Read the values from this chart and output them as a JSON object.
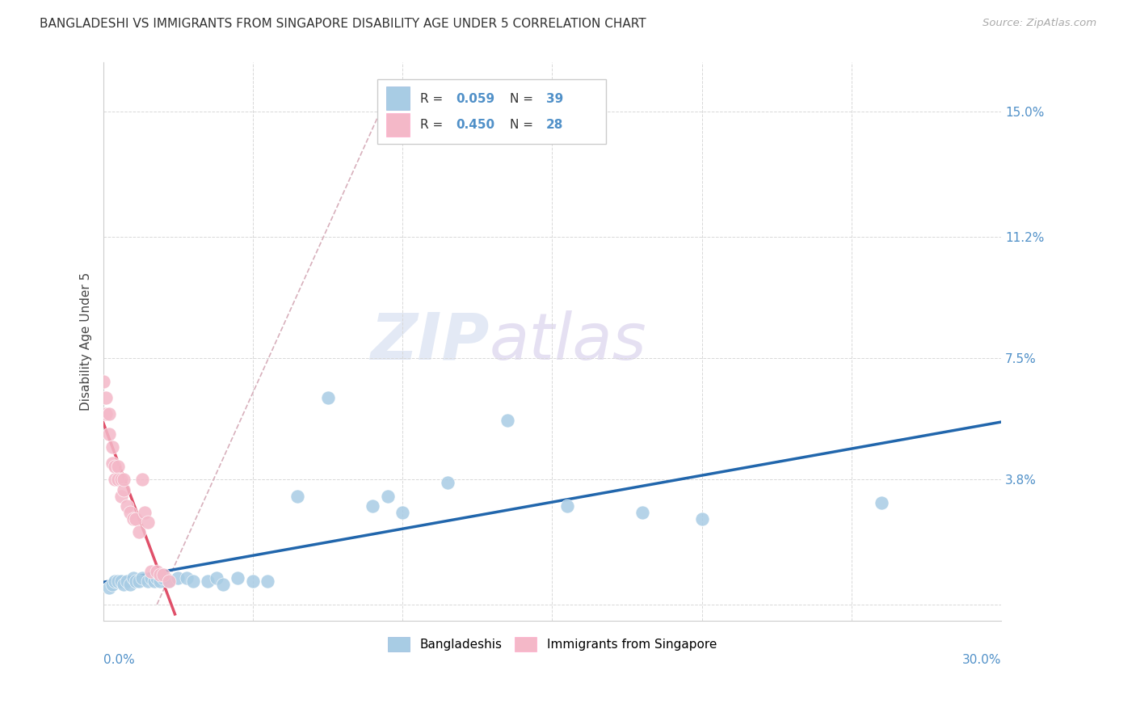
{
  "title": "BANGLADESHI VS IMMIGRANTS FROM SINGAPORE DISABILITY AGE UNDER 5 CORRELATION CHART",
  "source": "Source: ZipAtlas.com",
  "ylabel_label": "Disability Age Under 5",
  "xlim": [
    0.0,
    0.3
  ],
  "ylim": [
    -0.005,
    0.165
  ],
  "watermark_zip": "ZIP",
  "watermark_atlas": "atlas",
  "legend_r1": "R = 0.059",
  "legend_n1": "N = 39",
  "legend_r2": "R = 0.450",
  "legend_n2": "N = 28",
  "blue_color": "#a8cce4",
  "pink_color": "#f4b8c8",
  "line_blue": "#2166ac",
  "line_pink": "#e0506a",
  "dash_color": "#d8b0bc",
  "grid_color": "#d8d8d8",
  "title_color": "#333333",
  "right_label_color": "#5090c8",
  "label_color": "#5090c8",
  "yticks": [
    0.0,
    0.038,
    0.075,
    0.112,
    0.15
  ],
  "ytick_labels": [
    "",
    "3.8%",
    "7.5%",
    "11.2%",
    "15.0%"
  ],
  "blue_x": [
    0.002,
    0.003,
    0.004,
    0.005,
    0.006,
    0.007,
    0.008,
    0.009,
    0.01,
    0.011,
    0.012,
    0.013,
    0.015,
    0.016,
    0.017,
    0.018,
    0.019,
    0.02,
    0.022,
    0.025,
    0.028,
    0.03,
    0.035,
    0.038,
    0.04,
    0.045,
    0.05,
    0.055,
    0.065,
    0.075,
    0.09,
    0.095,
    0.1,
    0.115,
    0.135,
    0.155,
    0.18,
    0.2,
    0.26
  ],
  "blue_y": [
    0.005,
    0.006,
    0.007,
    0.007,
    0.007,
    0.006,
    0.007,
    0.006,
    0.008,
    0.007,
    0.007,
    0.008,
    0.007,
    0.008,
    0.007,
    0.008,
    0.007,
    0.008,
    0.007,
    0.008,
    0.008,
    0.007,
    0.007,
    0.008,
    0.006,
    0.008,
    0.007,
    0.007,
    0.033,
    0.063,
    0.03,
    0.033,
    0.028,
    0.037,
    0.056,
    0.03,
    0.028,
    0.026,
    0.031
  ],
  "pink_x": [
    0.0,
    0.001,
    0.001,
    0.002,
    0.002,
    0.003,
    0.003,
    0.004,
    0.004,
    0.005,
    0.005,
    0.006,
    0.006,
    0.007,
    0.007,
    0.008,
    0.009,
    0.01,
    0.011,
    0.012,
    0.013,
    0.014,
    0.015,
    0.016,
    0.018,
    0.019,
    0.02,
    0.022
  ],
  "pink_y": [
    0.068,
    0.063,
    0.058,
    0.058,
    0.052,
    0.048,
    0.043,
    0.042,
    0.038,
    0.042,
    0.038,
    0.038,
    0.033,
    0.035,
    0.038,
    0.03,
    0.028,
    0.026,
    0.026,
    0.022,
    0.038,
    0.028,
    0.025,
    0.01,
    0.01,
    0.009,
    0.009,
    0.007
  ]
}
